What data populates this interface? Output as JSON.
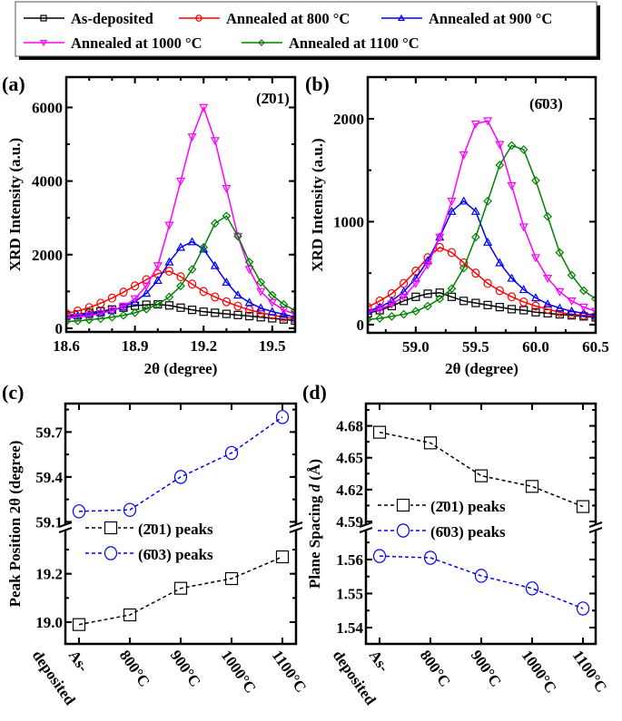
{
  "legend": {
    "entries": [
      {
        "label": "As-deposited",
        "color": "#000000",
        "marker": "square"
      },
      {
        "label": "Annealed at 800 °C",
        "color": "#ff0000",
        "marker": "circle"
      },
      {
        "label": "Annealed at 900 °C",
        "color": "#0000ff",
        "marker": "triangle-up"
      },
      {
        "label": "Annealed at 1000 °C",
        "color": "#ff00ff",
        "marker": "triangle-down"
      },
      {
        "label": "Annealed at 1100 °C",
        "color": "#008000",
        "marker": "diamond"
      }
    ],
    "placement": "top"
  },
  "chart_data": [
    {
      "panel": "(a)",
      "type": "line",
      "annotation": "(2̄01)",
      "xlabel": "2θ (degree)",
      "ylabel": "XRD Intensity (a.u.)",
      "xlim": [
        18.6,
        19.6
      ],
      "ylim": [
        -100,
        6825
      ],
      "xticks": [
        "18.6",
        "18.9",
        "19.2",
        "19.5"
      ],
      "yticks": [
        "0",
        "2000",
        "4000",
        "6000"
      ],
      "x": [
        18.6,
        18.65,
        18.7,
        18.75,
        18.8,
        18.85,
        18.9,
        18.95,
        19.0,
        19.05,
        19.1,
        19.15,
        19.2,
        19.25,
        19.3,
        19.35,
        19.4,
        19.45,
        19.5,
        19.55,
        19.6
      ],
      "series": [
        {
          "name": "As-deposited",
          "values": [
            350,
            380,
            420,
            460,
            510,
            560,
            610,
            640,
            650,
            620,
            560,
            500,
            450,
            420,
            390,
            360,
            330,
            300,
            270,
            240,
            210
          ]
        },
        {
          "name": "Annealed at 800 °C",
          "values": [
            400,
            470,
            560,
            680,
            820,
            980,
            1150,
            1320,
            1480,
            1550,
            1400,
            1200,
            1000,
            850,
            720,
            600,
            500,
            420,
            360,
            300,
            260
          ]
        },
        {
          "name": "Annealed at 900 °C",
          "values": [
            320,
            340,
            380,
            420,
            480,
            580,
            720,
            950,
            1300,
            1800,
            2200,
            2350,
            2150,
            1700,
            1250,
            900,
            700,
            550,
            450,
            380,
            300
          ]
        },
        {
          "name": "Annealed at 1000 °C",
          "values": [
            280,
            300,
            340,
            400,
            480,
            600,
            800,
            1150,
            1700,
            2800,
            4000,
            5200,
            6000,
            5100,
            3800,
            2500,
            1600,
            1000,
            700,
            500,
            380
          ]
        },
        {
          "name": "Annealed at 1100 °C",
          "values": [
            180,
            200,
            230,
            260,
            300,
            350,
            420,
            520,
            650,
            850,
            1150,
            1600,
            2200,
            2850,
            3050,
            2500,
            1800,
            1250,
            900,
            650,
            480
          ]
        }
      ]
    },
    {
      "panel": "(b)",
      "type": "line",
      "annotation": "(6̄03)",
      "xlabel": "2θ (degree)",
      "ylabel": "XRD Intensity (a.u.)",
      "xlim": [
        58.6,
        60.5
      ],
      "ylim": [
        -80,
        2405
      ],
      "xticks": [
        "59.0",
        "59.5",
        "60.0",
        "60.5"
      ],
      "yticks": [
        "0",
        "1000",
        "2000"
      ],
      "x": [
        58.6,
        58.7,
        58.8,
        58.9,
        59.0,
        59.1,
        59.2,
        59.3,
        59.4,
        59.5,
        59.6,
        59.7,
        59.8,
        59.9,
        60.0,
        60.1,
        60.2,
        60.3,
        60.4,
        60.5
      ],
      "series": [
        {
          "name": "As-deposited",
          "values": [
            110,
            140,
            180,
            230,
            270,
            300,
            310,
            270,
            230,
            210,
            190,
            170,
            150,
            140,
            120,
            110,
            100,
            90,
            80,
            70
          ]
        },
        {
          "name": "Annealed at 800 °C",
          "values": [
            170,
            230,
            300,
            400,
            520,
            650,
            750,
            700,
            600,
            500,
            400,
            330,
            270,
            220,
            180,
            150,
            120,
            100,
            90,
            80
          ]
        },
        {
          "name": "Annealed at 900 °C",
          "values": [
            130,
            170,
            230,
            320,
            450,
            620,
            850,
            1100,
            1200,
            1100,
            800,
            600,
            450,
            340,
            260,
            200,
            160,
            130,
            110,
            90
          ]
        },
        {
          "name": "Annealed at 1000 °C",
          "values": [
            120,
            150,
            200,
            270,
            400,
            580,
            850,
            1200,
            1650,
            1950,
            1980,
            1750,
            1350,
            950,
            650,
            450,
            320,
            230,
            170,
            130
          ]
        },
        {
          "name": "Annealed at 1100 °C",
          "values": [
            50,
            60,
            80,
            100,
            130,
            180,
            250,
            350,
            550,
            850,
            1200,
            1550,
            1740,
            1700,
            1400,
            1050,
            700,
            480,
            330,
            250
          ]
        }
      ]
    },
    {
      "panel": "(c)",
      "type": "line",
      "ylabel": "Peak Position 2θ  (degree)",
      "categories": [
        "As-deposited",
        "800°C",
        "900°C",
        "1000°C",
        "1100°C"
      ],
      "category_lines": [
        [
          "As-",
          "deposited"
        ],
        [
          "800°C"
        ],
        [
          "900°C"
        ],
        [
          "1000°C"
        ],
        [
          "1100°C"
        ]
      ],
      "broken_y_axis": true,
      "upper": {
        "ylim": [
          59.06,
          59.89
        ],
        "yticks": [
          "59.1",
          "59.4",
          "59.7"
        ]
      },
      "lower": {
        "ylim": [
          18.91,
          19.39
        ],
        "yticks": [
          "19.0",
          "19.2"
        ]
      },
      "series": [
        {
          "name": "(2̄01) peaks",
          "segment": "lower",
          "color": "#000000",
          "marker": "square",
          "values": [
            18.99,
            19.03,
            19.14,
            19.18,
            19.27
          ]
        },
        {
          "name": "(6̄03) peaks",
          "segment": "upper",
          "color": "#0000ff",
          "marker": "circle",
          "values": [
            59.17,
            59.18,
            59.4,
            59.56,
            59.8
          ]
        }
      ],
      "legend_placement": "center-left"
    },
    {
      "panel": "(d)",
      "type": "line",
      "ylabel_prefix": "Plane Spacing ",
      "ylabel_italic": "d",
      "ylabel_suffix": " (Å)",
      "categories": [
        "As-deposited",
        "800°C",
        "900°C",
        "1000°C",
        "1100°C"
      ],
      "category_lines": [
        [
          "As-",
          "deposited"
        ],
        [
          "800°C"
        ],
        [
          "900°C"
        ],
        [
          "1000°C"
        ],
        [
          "1100°C"
        ]
      ],
      "broken_y_axis": true,
      "upper": {
        "ylim": [
          4.584,
          4.701
        ],
        "yticks": [
          "4.59",
          "4.62",
          "4.65",
          "4.68"
        ]
      },
      "lower": {
        "ylim": [
          1.5352,
          1.5693
        ],
        "yticks": [
          "1.54",
          "1.55",
          "1.56"
        ]
      },
      "series": [
        {
          "name": "(2̄01) peaks",
          "segment": "upper",
          "color": "#000000",
          "marker": "square",
          "values": [
            4.674,
            4.664,
            4.633,
            4.623,
            4.604
          ]
        },
        {
          "name": "(6̄03) peaks",
          "segment": "lower",
          "color": "#0000ff",
          "marker": "circle",
          "values": [
            1.561,
            1.5605,
            1.5552,
            1.5515,
            1.5456
          ]
        }
      ],
      "legend_placement": "center-left"
    }
  ]
}
